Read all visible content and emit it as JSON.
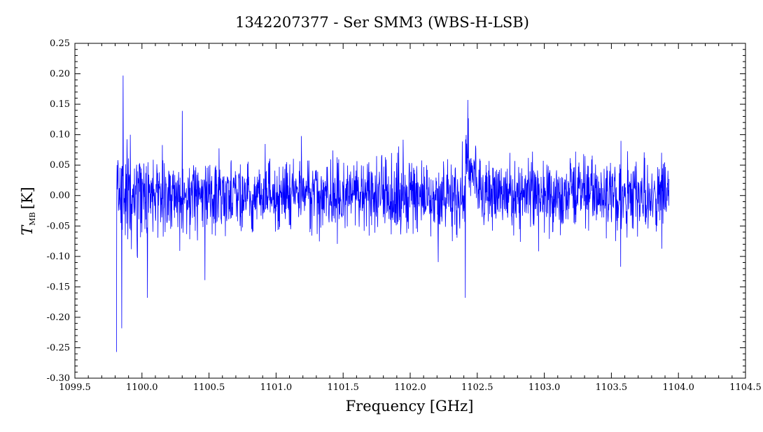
{
  "chart_data": {
    "type": "line",
    "title": "1342207377 - Ser SMM3 (WBS-H-LSB)",
    "xlabel": "Frequency [GHz]",
    "ylabel": "T",
    "ylabel_subscript": "MB",
    "ylabel_unit": "[K]",
    "xlim": [
      1099.5,
      1104.5
    ],
    "ylim": [
      -0.3,
      0.25
    ],
    "x_major_ticks": [
      1099.5,
      1100.0,
      1100.5,
      1101.0,
      1101.5,
      1102.0,
      1102.5,
      1103.0,
      1103.5,
      1104.0,
      1104.5
    ],
    "x_tick_labels": [
      "1099.5",
      "1100.0",
      "1100.5",
      "1101.0",
      "1101.5",
      "1102.0",
      "1102.5",
      "1103.0",
      "1103.5",
      "1104.0",
      "1104.5"
    ],
    "y_major_ticks": [
      -0.3,
      -0.25,
      -0.2,
      -0.15,
      -0.1,
      -0.05,
      0.0,
      0.05,
      0.1,
      0.15,
      0.2,
      0.25
    ],
    "y_tick_labels": [
      "-0.30",
      "-0.25",
      "-0.20",
      "-0.15",
      "-0.10",
      "-0.05",
      "0.00",
      "0.05",
      "0.10",
      "0.15",
      "0.20",
      "0.25"
    ],
    "grid": false,
    "legend": "none",
    "series": [
      {
        "color": "#0000ff",
        "x_start": 1099.81,
        "x_end": 1103.93,
        "noise_sigma": 0.035,
        "features": [
          {
            "x": 1099.81,
            "y": -0.257
          },
          {
            "x": 1099.86,
            "y": 0.197
          },
          {
            "x": 1099.85,
            "y": -0.218
          },
          {
            "x": 1100.04,
            "y": -0.168
          },
          {
            "x": 1100.3,
            "y": 0.139
          },
          {
            "x": 1100.47,
            "y": -0.139
          },
          {
            "x": 1102.41,
            "y": -0.168
          },
          {
            "x": 1102.43,
            "y": 0.157
          },
          {
            "x": 1103.57,
            "y": -0.117
          }
        ]
      }
    ]
  }
}
